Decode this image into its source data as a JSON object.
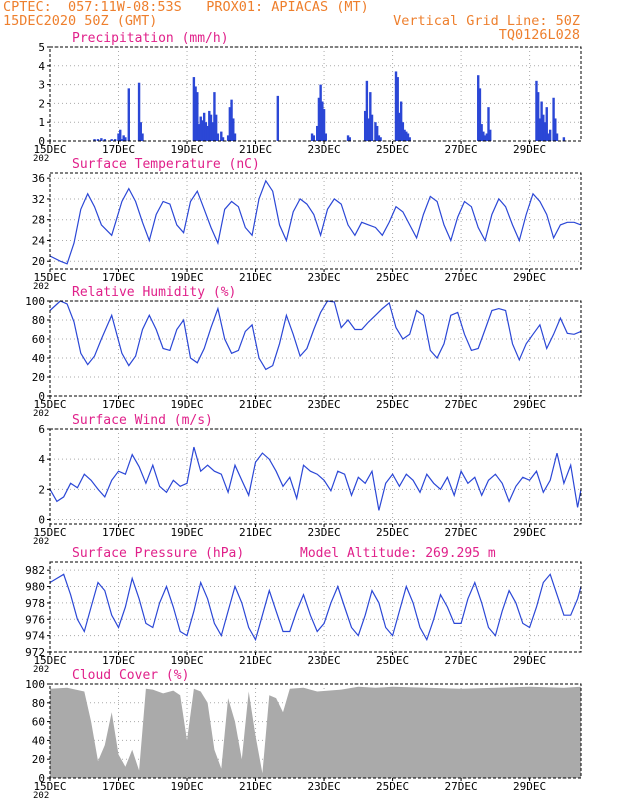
{
  "header": {
    "line1_left": "CPTEC:  057:11W-08:53S   PROX01: APIACAS (MT)",
    "line2_left": "15DEC2020 50Z (GMT)",
    "line2_right": "Vertical Grid Line: 50Z",
    "line3_right": "TQ0126L028"
  },
  "colors": {
    "header": "#ee7f2d",
    "title": "#e0208a",
    "line": "#2b47d6",
    "bar": "#2b47d6",
    "cloud": "#aaaaaa"
  },
  "x_axis": {
    "ticks": [
      "15DEC",
      "17DEC",
      "19DEC",
      "21DEC",
      "23DEC",
      "25DEC",
      "27DEC",
      "29DEC"
    ],
    "year_fragment": "202",
    "range_days": [
      0,
      15.5
    ]
  },
  "chart_data": [
    {
      "id": "precip",
      "type": "bar",
      "title": "Precipitation (mm/h)",
      "ylim": [
        0,
        5
      ],
      "yticks": [
        "0",
        "1",
        "2",
        "3",
        "4",
        "5"
      ],
      "x": [
        1.3,
        1.4,
        1.5,
        1.6,
        1.8,
        1.9,
        2.0,
        2.05,
        2.1,
        2.15,
        2.2,
        2.3,
        2.6,
        2.65,
        2.7,
        4.2,
        4.25,
        4.3,
        4.35,
        4.4,
        4.45,
        4.5,
        4.55,
        4.6,
        4.65,
        4.7,
        4.75,
        4.8,
        4.85,
        4.9,
        5.0,
        5.05,
        5.2,
        5.25,
        5.3,
        5.35,
        5.4,
        6.65,
        7.65,
        7.7,
        7.8,
        7.85,
        7.9,
        7.95,
        8.0,
        8.05,
        8.7,
        8.75,
        9.2,
        9.25,
        9.3,
        9.35,
        9.4,
        9.5,
        9.55,
        9.6,
        9.65,
        10.1,
        10.15,
        10.2,
        10.25,
        10.3,
        10.35,
        10.4,
        10.45,
        10.5,
        12.5,
        12.55,
        12.6,
        12.65,
        12.7,
        12.75,
        12.8,
        12.85,
        14.2,
        14.25,
        14.3,
        14.35,
        14.4,
        14.45,
        14.5,
        14.55,
        14.6,
        14.7,
        14.75,
        14.8,
        15.0
      ],
      "values": [
        0.1,
        0.1,
        0.15,
        0.1,
        0.1,
        0.1,
        0.4,
        0.6,
        0.1,
        0.3,
        0.2,
        2.8,
        3.1,
        1.0,
        0.4,
        3.4,
        2.9,
        2.6,
        0.9,
        1.3,
        1.1,
        1.5,
        1.0,
        0.8,
        1.6,
        1.4,
        1.0,
        2.6,
        1.4,
        0.4,
        0.5,
        0.2,
        0.3,
        1.8,
        2.2,
        1.2,
        0.4,
        2.4,
        0.4,
        0.3,
        0.8,
        2.3,
        3.0,
        2.1,
        1.7,
        0.4,
        0.3,
        0.2,
        1.6,
        3.2,
        1.2,
        2.6,
        1.4,
        1.0,
        0.8,
        0.3,
        0.2,
        3.7,
        3.4,
        1.5,
        2.1,
        1.0,
        0.6,
        0.5,
        0.4,
        0.2,
        3.5,
        2.8,
        0.9,
        0.5,
        0.3,
        0.4,
        1.8,
        0.6,
        3.2,
        2.6,
        1.2,
        2.1,
        1.4,
        1.0,
        1.8,
        0.4,
        0.6,
        2.3,
        1.2,
        0.4,
        0.2
      ]
    },
    {
      "id": "temp",
      "type": "line",
      "title": "Surface Temperature (nC)",
      "ylim": [
        18.5,
        37
      ],
      "ytick_values": [
        20,
        24,
        28,
        32,
        36
      ],
      "yticks": [
        "20",
        "24",
        "28",
        "32",
        "36"
      ],
      "x": [
        0,
        0.3,
        0.5,
        0.7,
        0.9,
        1.1,
        1.3,
        1.5,
        1.8,
        2.1,
        2.3,
        2.5,
        2.7,
        2.9,
        3.1,
        3.3,
        3.5,
        3.7,
        3.9,
        4.1,
        4.3,
        4.5,
        4.7,
        4.9,
        5.1,
        5.3,
        5.5,
        5.7,
        5.9,
        6.1,
        6.3,
        6.5,
        6.7,
        6.9,
        7.1,
        7.3,
        7.5,
        7.7,
        7.9,
        8.1,
        8.3,
        8.5,
        8.7,
        8.9,
        9.1,
        9.3,
        9.5,
        9.7,
        9.9,
        10.1,
        10.3,
        10.5,
        10.7,
        10.9,
        11.1,
        11.3,
        11.5,
        11.7,
        11.9,
        12.1,
        12.3,
        12.5,
        12.7,
        12.9,
        13.1,
        13.3,
        13.5,
        13.7,
        13.9,
        14.1,
        14.3,
        14.5,
        14.7,
        14.9,
        15.1,
        15.3,
        15.5
      ],
      "values": [
        21.0,
        20.0,
        19.5,
        23.5,
        30.0,
        33.0,
        30.5,
        27.0,
        25.0,
        31.5,
        34.0,
        31.5,
        27.5,
        24.0,
        29.0,
        31.5,
        31.0,
        27.0,
        25.5,
        31.5,
        33.5,
        30.0,
        26.5,
        23.5,
        30.0,
        31.5,
        30.5,
        26.5,
        25.0,
        32.0,
        35.5,
        33.5,
        27.0,
        24.0,
        29.5,
        32.0,
        31.0,
        29.0,
        25.0,
        30.0,
        32.0,
        31.0,
        27.0,
        25.0,
        27.5,
        27.0,
        26.5,
        25.0,
        27.5,
        30.5,
        29.5,
        27.0,
        24.5,
        29.0,
        32.5,
        31.5,
        27.0,
        24.0,
        28.5,
        31.5,
        30.5,
        26.5,
        24.0,
        29.0,
        32.0,
        30.5,
        27.0,
        24.0,
        29.0,
        33.0,
        31.5,
        29.0,
        24.5,
        27.0,
        27.5,
        27.5,
        27.0
      ]
    },
    {
      "id": "rh",
      "type": "line",
      "title": "Relative Humidity (%)",
      "ylim": [
        0,
        100
      ],
      "ytick_values": [
        0,
        20,
        40,
        60,
        80,
        100
      ],
      "yticks": [
        "0",
        "20",
        "40",
        "60",
        "80",
        "100"
      ],
      "x": [
        0,
        0.3,
        0.5,
        0.7,
        0.9,
        1.1,
        1.3,
        1.5,
        1.8,
        2.1,
        2.3,
        2.5,
        2.7,
        2.9,
        3.1,
        3.3,
        3.5,
        3.7,
        3.9,
        4.1,
        4.3,
        4.5,
        4.7,
        4.9,
        5.1,
        5.3,
        5.5,
        5.7,
        5.9,
        6.1,
        6.3,
        6.5,
        6.7,
        6.9,
        7.1,
        7.3,
        7.5,
        7.7,
        7.9,
        8.1,
        8.3,
        8.5,
        8.7,
        8.9,
        9.1,
        9.3,
        9.5,
        9.7,
        9.9,
        10.1,
        10.3,
        10.5,
        10.7,
        10.9,
        11.1,
        11.3,
        11.5,
        11.7,
        11.9,
        12.1,
        12.3,
        12.5,
        12.7,
        12.9,
        13.1,
        13.3,
        13.5,
        13.7,
        13.9,
        14.1,
        14.3,
        14.5,
        14.7,
        14.9,
        15.1,
        15.3,
        15.5
      ],
      "values": [
        90,
        100,
        97,
        78,
        45,
        33,
        42,
        60,
        85,
        45,
        32,
        42,
        70,
        85,
        70,
        50,
        48,
        70,
        80,
        40,
        35,
        50,
        72,
        92,
        60,
        45,
        48,
        68,
        75,
        40,
        28,
        32,
        55,
        85,
        65,
        42,
        50,
        70,
        88,
        100,
        99,
        72,
        80,
        70,
        70,
        78,
        85,
        92,
        98,
        72,
        60,
        65,
        90,
        85,
        48,
        40,
        55,
        85,
        88,
        65,
        48,
        50,
        70,
        90,
        92,
        90,
        55,
        38,
        55,
        65,
        75,
        50,
        65,
        82,
        66,
        65,
        68
      ]
    },
    {
      "id": "wind",
      "type": "line",
      "title": "Surface Wind (m/s)",
      "ylim": [
        -0.3,
        6
      ],
      "ytick_values": [
        0,
        2,
        4,
        6
      ],
      "yticks": [
        "0",
        "2",
        "4",
        "6"
      ],
      "x": [
        0,
        0.2,
        0.4,
        0.6,
        0.8,
        1.0,
        1.2,
        1.4,
        1.6,
        1.8,
        2.0,
        2.2,
        2.4,
        2.6,
        2.8,
        3.0,
        3.2,
        3.4,
        3.6,
        3.8,
        4.0,
        4.2,
        4.4,
        4.6,
        4.8,
        5.0,
        5.2,
        5.4,
        5.6,
        5.8,
        6.0,
        6.2,
        6.4,
        6.6,
        6.8,
        7.0,
        7.2,
        7.4,
        7.6,
        7.8,
        8.0,
        8.2,
        8.4,
        8.6,
        8.8,
        9.0,
        9.2,
        9.4,
        9.6,
        9.8,
        10.0,
        10.2,
        10.4,
        10.6,
        10.8,
        11.0,
        11.2,
        11.4,
        11.6,
        11.8,
        12.0,
        12.2,
        12.4,
        12.6,
        12.8,
        13.0,
        13.2,
        13.4,
        13.6,
        13.8,
        14.0,
        14.2,
        14.4,
        14.6,
        14.8,
        15.0,
        15.2,
        15.4,
        15.5
      ],
      "values": [
        2.0,
        1.2,
        1.5,
        2.4,
        2.1,
        3.0,
        2.6,
        2.0,
        1.5,
        2.6,
        3.2,
        3.0,
        4.3,
        3.5,
        2.4,
        3.6,
        2.2,
        1.8,
        2.6,
        2.2,
        2.4,
        4.8,
        3.2,
        3.6,
        3.2,
        3.0,
        1.8,
        3.6,
        2.6,
        1.6,
        3.8,
        4.4,
        4.0,
        3.2,
        2.2,
        2.8,
        1.4,
        3.6,
        3.2,
        3.0,
        2.6,
        1.9,
        3.2,
        3.0,
        1.6,
        2.8,
        2.4,
        3.2,
        0.6,
        2.4,
        3.0,
        2.2,
        3.0,
        2.6,
        1.8,
        3.0,
        2.4,
        2.0,
        2.8,
        1.6,
        3.2,
        2.4,
        2.8,
        1.6,
        2.6,
        3.0,
        2.4,
        1.2,
        2.2,
        2.8,
        2.6,
        3.2,
        1.8,
        2.6,
        4.4,
        2.4,
        3.6,
        0.8,
        2.0
      ]
    },
    {
      "id": "pressure",
      "type": "line",
      "title": "Surface Pressure (hPa)",
      "annotation": "Model Altitude: 269.295 m",
      "ylim": [
        972,
        983
      ],
      "ytick_values": [
        972,
        974,
        976,
        978,
        980,
        982
      ],
      "yticks": [
        "972",
        "974",
        "976",
        "978",
        "980",
        "982"
      ],
      "x": [
        0,
        0.2,
        0.4,
        0.6,
        0.8,
        1.0,
        1.2,
        1.4,
        1.6,
        1.8,
        2.0,
        2.2,
        2.4,
        2.6,
        2.8,
        3.0,
        3.2,
        3.4,
        3.6,
        3.8,
        4.0,
        4.2,
        4.4,
        4.6,
        4.8,
        5.0,
        5.2,
        5.4,
        5.6,
        5.8,
        6.0,
        6.2,
        6.4,
        6.6,
        6.8,
        7.0,
        7.2,
        7.4,
        7.6,
        7.8,
        8.0,
        8.2,
        8.4,
        8.6,
        8.8,
        9.0,
        9.2,
        9.4,
        9.6,
        9.8,
        10.0,
        10.2,
        10.4,
        10.6,
        10.8,
        11.0,
        11.2,
        11.4,
        11.6,
        11.8,
        12.0,
        12.2,
        12.4,
        12.6,
        12.8,
        13.0,
        13.2,
        13.4,
        13.6,
        13.8,
        14.0,
        14.2,
        14.4,
        14.6,
        14.8,
        15.0,
        15.2,
        15.4,
        15.5
      ],
      "values": [
        980.5,
        981.0,
        981.5,
        979.0,
        976.0,
        974.5,
        977.5,
        980.5,
        979.5,
        976.5,
        975.0,
        977.5,
        981.0,
        978.5,
        975.5,
        975.0,
        978.0,
        980.0,
        977.5,
        974.5,
        974.0,
        977.0,
        980.5,
        978.5,
        975.5,
        974.0,
        977.0,
        980.0,
        978.0,
        975.0,
        973.5,
        976.5,
        979.5,
        977.0,
        974.5,
        974.5,
        977.0,
        979.0,
        976.5,
        974.5,
        975.5,
        978.0,
        980.0,
        977.5,
        975.0,
        974.0,
        976.5,
        979.5,
        978.0,
        975.0,
        974.0,
        977.0,
        980.0,
        978.0,
        975.0,
        973.5,
        976.0,
        979.0,
        977.5,
        975.5,
        975.5,
        978.5,
        980.5,
        978.0,
        975.0,
        974.0,
        977.0,
        979.5,
        978.0,
        975.5,
        975.0,
        977.5,
        980.5,
        981.5,
        979.0,
        976.5,
        976.5,
        978.5,
        980.0
      ]
    },
    {
      "id": "cloud",
      "type": "area",
      "title": "Cloud Cover (%)",
      "ylim": [
        0,
        100
      ],
      "ytick_values": [
        0,
        20,
        40,
        60,
        80,
        100
      ],
      "yticks": [
        "0",
        "20",
        "40",
        "60",
        "80",
        "100"
      ],
      "x": [
        0,
        0.5,
        1.0,
        1.2,
        1.4,
        1.6,
        1.8,
        2.0,
        2.2,
        2.4,
        2.6,
        2.8,
        3.0,
        3.3,
        3.6,
        3.8,
        4.0,
        4.2,
        4.4,
        4.6,
        4.8,
        5.0,
        5.2,
        5.4,
        5.6,
        5.8,
        6.0,
        6.2,
        6.4,
        6.6,
        6.8,
        7.0,
        7.4,
        7.8,
        8.5,
        9.0,
        9.5,
        10,
        11,
        12,
        13,
        14,
        15,
        15.5
      ],
      "values": [
        95,
        96,
        92,
        60,
        18,
        35,
        70,
        25,
        12,
        30,
        8,
        95,
        94,
        90,
        93,
        88,
        40,
        95,
        92,
        80,
        30,
        10,
        85,
        60,
        20,
        92,
        45,
        5,
        88,
        85,
        70,
        95,
        96,
        92,
        94,
        97,
        96,
        97,
        96,
        95,
        96,
        97,
        96,
        97
      ]
    }
  ]
}
